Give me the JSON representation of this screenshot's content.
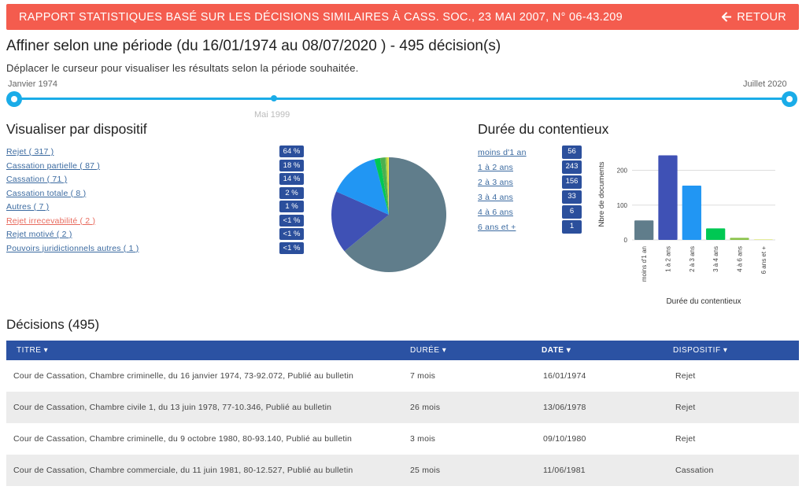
{
  "banner": {
    "title": "RAPPORT STATISTIQUES BASÉ SUR LES DÉCISIONS SIMILAIRES À CASS. SOC., 23 MAI 2007, N° 06-43.209",
    "back_label": "RETOUR"
  },
  "period": {
    "heading": "Affiner selon une période (du 16/01/1974 au 08/07/2020 ) - 495 décision(s)",
    "instruction": "Déplacer le curseur pour visualiser les résultats selon la période souhaitée.",
    "start_label": "Janvier 1974",
    "end_label": "Juillet 2020",
    "mid_label": "Mai 1999"
  },
  "dispositif": {
    "title": "Visualiser par dispositif",
    "items": [
      {
        "label": "Rejet ( 317 )",
        "pct": "64 %",
        "value": 317,
        "color": "#607d8b"
      },
      {
        "label": "Cassation partielle ( 87 )",
        "pct": "18 %",
        "value": 87,
        "color": "#3f51b5"
      },
      {
        "label": "Cassation ( 71 )",
        "pct": "14 %",
        "value": 71,
        "color": "#2196f3"
      },
      {
        "label": "Cassation totale ( 8 )",
        "pct": "2 %",
        "value": 8,
        "color": "#00c853"
      },
      {
        "label": "Autres ( 7 )",
        "pct": "1 %",
        "value": 7,
        "color": "#4caf50"
      },
      {
        "label": "Rejet irrecevabilité ( 2 )",
        "pct": "<1 %",
        "value": 2,
        "color": "#8bc34a"
      },
      {
        "label": "Rejet motivé ( 2 )",
        "pct": "<1 %",
        "value": 2,
        "color": "#cddc39"
      },
      {
        "label": "Pouvoirs juridictionnels autres ( 1 )",
        "pct": "<1 %",
        "value": 1,
        "color": "#ffeb3b"
      }
    ]
  },
  "duree": {
    "title": "Durée du contentieux",
    "items": [
      {
        "label": "moins d'1 an",
        "count": "56"
      },
      {
        "label": "1 à 2 ans",
        "count": "243"
      },
      {
        "label": "2 à 3 ans",
        "count": "156"
      },
      {
        "label": "3 à 4 ans",
        "count": "33"
      },
      {
        "label": "4 à 6 ans",
        "count": "6"
      },
      {
        "label": "6 ans et +",
        "count": "1"
      }
    ]
  },
  "chart_data": [
    {
      "type": "pie",
      "categories": [
        "Rejet",
        "Cassation partielle",
        "Cassation",
        "Cassation totale",
        "Autres",
        "Rejet irrecevabilité",
        "Rejet motivé",
        "Pouvoirs juridictionnels autres"
      ],
      "values": [
        317,
        87,
        71,
        8,
        7,
        2,
        2,
        1
      ]
    },
    {
      "type": "bar",
      "categories": [
        "moins d'1 an",
        "1 à 2 ans",
        "2 à 3 ans",
        "3 à 4 ans",
        "4 à 6 ans",
        "6 ans et +"
      ],
      "values": [
        56,
        243,
        156,
        33,
        6,
        1
      ],
      "colors": [
        "#607d8b",
        "#3f51b5",
        "#2196f3",
        "#00c853",
        "#8bc34a",
        "#cddc39"
      ],
      "xlabel": "Durée du contentieux",
      "ylabel": "Nbre de documents",
      "ylim": [
        0,
        260
      ],
      "yticks": [
        "0",
        "100",
        "200"
      ],
      "grid": true
    }
  ],
  "decisions": {
    "title": "Décisions (495)",
    "columns": [
      "TITRE",
      "DURÉE",
      "DATE",
      "DISPOSITIF"
    ],
    "rows": [
      {
        "titre": "Cour de Cassation, Chambre criminelle, du 16 janvier 1974, 73-92.072, Publié au bulletin",
        "duree": "7 mois",
        "date": "16/01/1974",
        "dispositif": "Rejet"
      },
      {
        "titre": "Cour de Cassation, Chambre civile 1, du 13 juin 1978, 77-10.346, Publié au bulletin",
        "duree": "26 mois",
        "date": "13/06/1978",
        "dispositif": "Rejet"
      },
      {
        "titre": "Cour de Cassation, Chambre criminelle, du 9 octobre 1980, 80-93.140, Publié au bulletin",
        "duree": "3 mois",
        "date": "09/10/1980",
        "dispositif": "Rejet"
      },
      {
        "titre": "Cour de Cassation, Chambre commerciale, du 11 juin 1981, 80-12.527, Publié au bulletin",
        "duree": "25 mois",
        "date": "11/06/1981",
        "dispositif": "Cassation"
      }
    ]
  }
}
